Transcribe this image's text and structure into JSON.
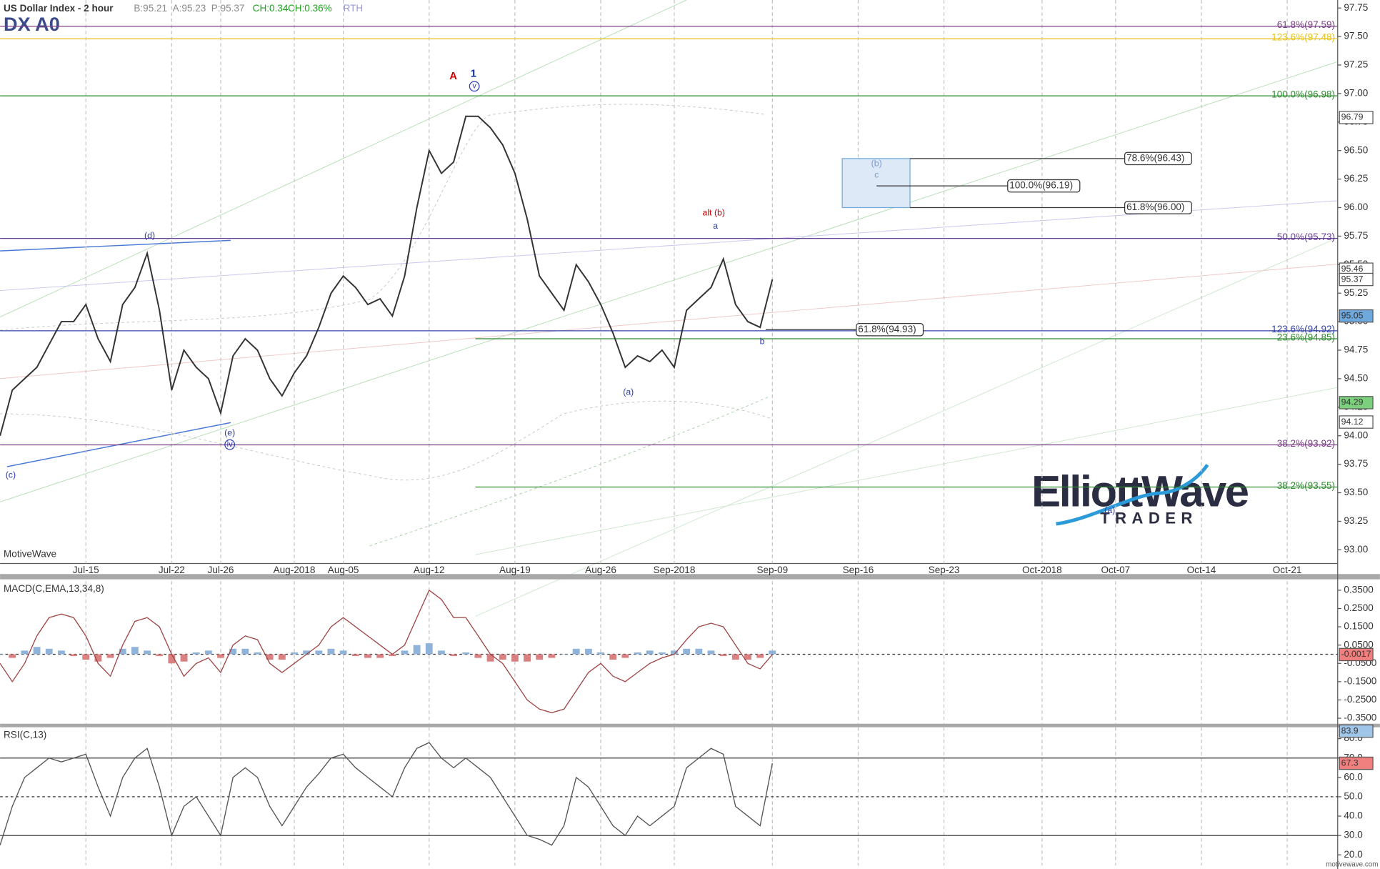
{
  "header": {
    "title": "US Dollar Index - 2 hour",
    "symbol": "DX A0",
    "quote": [
      {
        "text": "B:95.21",
        "color": "#8a8a8a"
      },
      {
        "text": "A:95.23",
        "color": "#8a8a8a"
      },
      {
        "text": "P:95.37",
        "color": "#8a8a8a"
      },
      {
        "text": "CH:0.34",
        "color": "#1fa01f"
      },
      {
        "text": "CH:0.36%",
        "color": "#1fa01f"
      },
      {
        "text": "RTH",
        "color": "#9a9ad0"
      }
    ],
    "watermark": "MotiveWave",
    "footer": "motivewave.com"
  },
  "logo": {
    "name": "ElliottWave",
    "tagline": "TRADER"
  },
  "chart_data": [
    {
      "type": "line",
      "title": "US Dollar Index - 2 hour",
      "grid": "x",
      "categories": [
        null,
        null,
        null,
        null,
        null,
        null,
        null,
        "Jul-15",
        null,
        null,
        null,
        null,
        null,
        null,
        "Jul-22",
        null,
        null,
        null,
        "Jul-26",
        null,
        null,
        null,
        null,
        null,
        "Aug-2018",
        null,
        null,
        null,
        "Aug-05",
        null,
        null,
        null,
        null,
        null,
        null,
        "Aug-12",
        null,
        null,
        null,
        null,
        null,
        null,
        "Aug-19",
        null,
        null,
        null,
        null,
        null,
        null,
        "Aug-26",
        null,
        null,
        null,
        null,
        null,
        "Sep-2018",
        null,
        null,
        null,
        null,
        null,
        null,
        null,
        "Sep-09",
        null,
        null,
        null,
        null,
        null,
        null,
        "Sep-16",
        null,
        null,
        null,
        null,
        null,
        null,
        "Sep-23",
        null,
        null,
        null,
        null,
        null,
        null,
        null,
        "Oct-2018",
        null,
        null,
        null,
        null,
        null,
        "Oct-07",
        null,
        null,
        null,
        null,
        null,
        null,
        "Oct-14",
        null,
        null,
        null,
        null,
        null,
        null,
        "Oct-21"
      ],
      "series": [
        {
          "color": "#333333",
          "values": [
            94.0,
            94.4,
            94.5,
            94.6,
            94.8,
            95.0,
            95.0,
            95.15,
            94.85,
            94.65,
            95.15,
            95.3,
            95.6,
            95.1,
            94.4,
            94.75,
            94.6,
            94.5,
            94.2,
            94.7,
            94.85,
            94.75,
            94.5,
            94.35,
            94.55,
            94.7,
            94.95,
            95.25,
            95.4,
            95.3,
            95.15,
            95.2,
            95.05,
            95.4,
            96.0,
            96.5,
            96.3,
            96.4,
            96.8,
            96.8,
            96.7,
            96.55,
            96.3,
            95.9,
            95.4,
            95.25,
            95.1,
            95.5,
            95.35,
            95.15,
            94.9,
            94.6,
            94.7,
            94.65,
            94.75,
            94.6,
            95.1,
            95.2,
            95.3,
            95.55,
            95.15,
            95.0,
            94.95,
            95.37,
            null,
            null,
            null,
            null,
            null,
            null,
            null,
            null,
            null,
            null,
            null,
            null,
            null,
            null,
            null,
            null,
            null,
            null,
            null,
            null,
            null,
            null,
            null,
            null,
            null,
            null,
            null,
            null,
            null,
            null,
            null,
            null,
            null,
            null,
            null,
            null,
            null,
            null,
            null,
            null,
            null,
            null
          ]
        }
      ],
      "ylim": [
        92.88,
        97.82
      ],
      "yticks": [
        {
          "value": 93,
          "label": "93.00"
        },
        {
          "value": 93.25,
          "label": "93.25"
        },
        {
          "value": 93.5,
          "label": "93.50"
        },
        {
          "value": 93.75,
          "label": "93.75"
        },
        {
          "value": 94,
          "label": "94.00"
        },
        {
          "value": 94.25,
          "label": "94.25"
        },
        {
          "value": 94.5,
          "label": "94.50"
        },
        {
          "value": 94.75,
          "label": "94.75"
        },
        {
          "value": 95,
          "label": "95.00"
        },
        {
          "value": 95.25,
          "label": "95.25"
        },
        {
          "value": 95.5,
          "label": "95.50"
        },
        {
          "value": 95.75,
          "label": "95.75"
        },
        {
          "value": 96,
          "label": "96.00"
        },
        {
          "value": 96.25,
          "label": "96.25"
        },
        {
          "value": 96.5,
          "label": "96.50"
        },
        {
          "value": 96.75,
          "label": "96.75"
        },
        {
          "value": 97,
          "label": "97.00"
        },
        {
          "value": 97.25,
          "label": "97.25"
        },
        {
          "value": 97.5,
          "label": "97.50"
        },
        {
          "value": 97.75,
          "label": "97.75"
        }
      ],
      "levels": [
        {
          "value": 97.59,
          "label": "61.8%(97.59)",
          "color": "#7b3f86"
        },
        {
          "value": 97.48,
          "label": "123.6%(97.48)",
          "color": "#e6c21a"
        },
        {
          "value": 96.98,
          "label": "100.0%(96.98)",
          "color": "#2e8b2e"
        },
        {
          "value": 95.73,
          "label": "50.0%(95.73)",
          "color": "#6a3f96"
        },
        {
          "value": 94.92,
          "label": "123.6%(94.92)",
          "color": "#3344aa"
        },
        {
          "value": 94.85,
          "label": "23.6%(94.85)",
          "color": "#2e8b2e"
        },
        {
          "value": 93.92,
          "label": "38.2%(93.92)",
          "color": "#7b3f86"
        },
        {
          "value": 93.55,
          "label": "38.2%(93.55)",
          "color": "#2e8b2e"
        }
      ],
      "targets": [
        {
          "value": 96.43,
          "label": "78.6%(96.43)"
        },
        {
          "value": 96.19,
          "label": "100.0%(96.19)"
        },
        {
          "value": 96.0,
          "label": "61.8%(96.00)"
        },
        {
          "value": 94.93,
          "label": "61.8%(94.93)"
        }
      ],
      "tags": [
        {
          "value": 96.79,
          "color": "#ffffff"
        },
        {
          "value": 95.46,
          "color": "#ffffff"
        },
        {
          "value": 95.37,
          "color": "#ffffff"
        },
        {
          "value": 95.05,
          "color": "#6fa8dc"
        },
        {
          "value": 94.29,
          "color": "#7ccf7c"
        },
        {
          "value": 94.12,
          "color": "#ffffff"
        }
      ],
      "annotations": [
        {
          "text": "A",
          "color": "#d00000"
        },
        {
          "text": "1",
          "color": "#0a2aa0"
        },
        {
          "text": "v",
          "color": "#2a3ab0",
          "circled": true
        },
        {
          "text": "(d)",
          "color": "#2a3ab0"
        },
        {
          "text": "(c)",
          "color": "#2a3ab0"
        },
        {
          "text": "(e)",
          "color": "#2a3ab0"
        },
        {
          "text": "iv",
          "color": "#2a3ab0",
          "circled": true
        },
        {
          "text": "(a)",
          "color": "#2a3ab0"
        },
        {
          "text": "alt (b)",
          "color": "#d00000"
        },
        {
          "text": "a",
          "color": "#2a3ab0"
        },
        {
          "text": "b",
          "color": "#2a3ab0"
        },
        {
          "text": "(b)",
          "color": "#7a9ad0"
        },
        {
          "text": "c",
          "color": "#7a9ad0"
        },
        {
          "text": "(a)",
          "color": "#2a3ab0"
        }
      ]
    },
    {
      "type": "line",
      "title": "MACD(C,EMA,13,34,8)",
      "series": [
        {
          "kind": "bar",
          "color": "#8fb3d9",
          "negative_color": "#d98080",
          "values": [
            0,
            -0.02,
            0.02,
            0.04,
            0.03,
            0.02,
            -0.01,
            -0.03,
            -0.04,
            -0.02,
            0.03,
            0.04,
            0.02,
            -0.01,
            -0.05,
            -0.04,
            0.01,
            0.02,
            -0.02,
            0.03,
            0.03,
            0.01,
            -0.03,
            -0.03,
            0.01,
            0.02,
            0.02,
            0.03,
            0.02,
            -0.01,
            -0.02,
            -0.02,
            -0.01,
            0.02,
            0.05,
            0.06,
            0.02,
            -0.01,
            0.01,
            -0.02,
            -0.04,
            -0.03,
            -0.04,
            -0.04,
            -0.03,
            -0.02,
            0,
            0.03,
            0.03,
            0.01,
            -0.03,
            -0.02,
            0.01,
            0.02,
            0.01,
            0.02,
            0.03,
            0.03,
            0.02,
            -0.01,
            -0.03,
            -0.03,
            -0.02,
            0.02,
            null,
            null,
            null,
            null,
            null,
            null,
            null,
            null,
            null,
            null,
            null,
            null,
            null,
            null,
            null,
            null,
            null,
            null,
            null,
            null,
            null,
            null,
            null,
            null,
            null,
            null,
            null,
            null,
            null,
            null,
            null,
            null,
            null,
            null,
            null,
            null,
            null,
            null,
            null,
            null,
            null,
            null
          ]
        },
        {
          "kind": "line",
          "color": "#a04848",
          "values": [
            -0.05,
            -0.15,
            -0.05,
            0.1,
            0.2,
            0.22,
            0.2,
            0.1,
            -0.05,
            -0.12,
            0.05,
            0.18,
            0.2,
            0.15,
            0,
            -0.12,
            -0.05,
            -0.02,
            -0.1,
            0.05,
            0.1,
            0.08,
            -0.05,
            -0.1,
            -0.05,
            0,
            0.05,
            0.15,
            0.2,
            0.15,
            0.1,
            0.05,
            0,
            0.05,
            0.2,
            0.35,
            0.3,
            0.2,
            0.2,
            0.1,
            0,
            -0.05,
            -0.15,
            -0.25,
            -0.3,
            -0.32,
            -0.3,
            -0.2,
            -0.1,
            -0.05,
            -0.12,
            -0.15,
            -0.1,
            -0.05,
            -0.02,
            0,
            0.08,
            0.15,
            0.17,
            0.15,
            0.05,
            -0.05,
            -0.08,
            -0.0017,
            null,
            null,
            null,
            null,
            null,
            null,
            null,
            null,
            null,
            null,
            null,
            null,
            null,
            null,
            null,
            null,
            null,
            null,
            null,
            null,
            null,
            null,
            null,
            null,
            null,
            null,
            null,
            null,
            null,
            null,
            null,
            null,
            null,
            null,
            null,
            null,
            null,
            null,
            null,
            null,
            null,
            null
          ]
        }
      ],
      "ylim": [
        -0.38,
        0.4
      ],
      "yticks": [
        {
          "value": 0.35,
          "label": "0.3500"
        },
        {
          "value": 0.25,
          "label": "0.2500"
        },
        {
          "value": 0.15,
          "label": "0.1500"
        },
        {
          "value": 0.05,
          "label": "0.0500"
        },
        {
          "value": -0.05,
          "label": "-0.0500"
        },
        {
          "value": -0.15,
          "label": "-0.1500"
        },
        {
          "value": -0.25,
          "label": "-0.2500"
        },
        {
          "value": -0.35,
          "label": "-0.3500"
        }
      ],
      "levels": [
        {
          "value": 0,
          "color": "#333333",
          "style": "dashed"
        }
      ],
      "tags": [
        {
          "value": -0.0017,
          "color": "#f08080"
        }
      ]
    },
    {
      "type": "line",
      "title": "RSI(C,13)",
      "series": [
        {
          "kind": "line",
          "color": "#555555",
          "values": [
            25,
            45,
            60,
            65,
            70,
            68,
            70,
            72,
            55,
            40,
            60,
            70,
            75,
            55,
            30,
            45,
            50,
            40,
            30,
            60,
            65,
            60,
            45,
            35,
            45,
            55,
            62,
            70,
            72,
            65,
            60,
            55,
            50,
            65,
            75,
            78,
            70,
            65,
            70,
            65,
            60,
            50,
            40,
            30,
            28,
            25,
            35,
            60,
            55,
            45,
            35,
            30,
            40,
            35,
            40,
            45,
            65,
            70,
            75,
            72,
            45,
            40,
            35,
            67.3,
            null,
            null,
            null,
            null,
            null,
            null,
            null,
            null,
            null,
            null,
            null,
            null,
            null,
            null,
            null,
            null,
            null,
            null,
            null,
            null,
            null,
            null,
            null,
            null,
            null,
            null,
            null,
            null,
            null,
            null,
            null,
            null,
            null,
            null,
            null,
            null,
            null,
            null,
            null,
            null,
            null,
            null
          ]
        }
      ],
      "ylim": [
        14.5,
        85.9
      ],
      "yticks": [
        {
          "value": 20,
          "label": "20.0"
        },
        {
          "value": 30,
          "label": "30.0"
        },
        {
          "value": 40,
          "label": "40.0"
        },
        {
          "value": 50,
          "label": "50.0"
        },
        {
          "value": 60,
          "label": "60.0"
        },
        {
          "value": 70,
          "label": "70.0"
        },
        {
          "value": 80,
          "label": "80.0"
        }
      ],
      "levels": [
        {
          "value": 70,
          "color": "#333333",
          "style": "solid"
        },
        {
          "value": 50,
          "color": "#333333",
          "style": "dashed"
        },
        {
          "value": 30,
          "color": "#333333",
          "style": "solid"
        }
      ],
      "tags": [
        {
          "value": 83.9,
          "color": "#9fc5e8"
        },
        {
          "value": 67.3,
          "color": "#f08080"
        }
      ]
    }
  ]
}
